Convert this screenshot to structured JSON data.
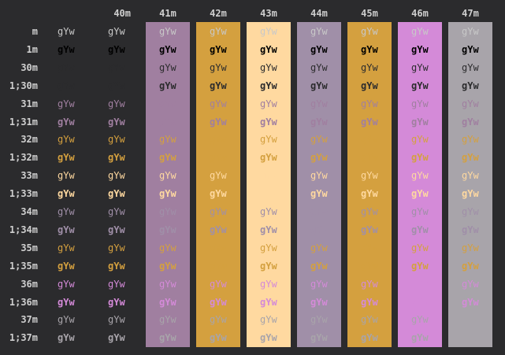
{
  "window": {
    "background": "#2b2b2d"
  },
  "sample_text": "gYw",
  "columns": [
    {
      "label": "",
      "bg": null
    },
    {
      "label": "40m",
      "bg": null
    },
    {
      "label": "41m",
      "bg": "#a07fa0"
    },
    {
      "label": "42m",
      "bg": "#d4a03f"
    },
    {
      "label": "43m",
      "bg": "#ffd9a0"
    },
    {
      "label": "44m",
      "bg": "#a08fa8"
    },
    {
      "label": "45m",
      "bg": "#d4a03f"
    },
    {
      "label": "46m",
      "bg": "#d48ad8"
    },
    {
      "label": "47m",
      "bg": "#a8a4aa"
    }
  ],
  "rows": [
    {
      "label": "m",
      "fg": "#c8c8c8",
      "bold": false
    },
    {
      "label": "1m",
      "fg": "#000000",
      "bold": true
    },
    {
      "label": "30m",
      "fg": "#2b2b2d",
      "bold": false
    },
    {
      "label": "1;30m",
      "fg": "#2b2b2d",
      "bold": true
    },
    {
      "label": "31m",
      "fg": "#a07fa0",
      "bold": false
    },
    {
      "label": "1;31m",
      "fg": "#a07fa0",
      "bold": true
    },
    {
      "label": "32m",
      "fg": "#d4a03f",
      "bold": false
    },
    {
      "label": "1;32m",
      "fg": "#d4a03f",
      "bold": true
    },
    {
      "label": "33m",
      "fg": "#ffd9a0",
      "bold": false
    },
    {
      "label": "1;33m",
      "fg": "#ffd9a0",
      "bold": true
    },
    {
      "label": "34m",
      "fg": "#a08fa8",
      "bold": false
    },
    {
      "label": "1;34m",
      "fg": "#a08fa8",
      "bold": true
    },
    {
      "label": "35m",
      "fg": "#d4a03f",
      "bold": false
    },
    {
      "label": "1;35m",
      "fg": "#d4a03f",
      "bold": true
    },
    {
      "label": "36m",
      "fg": "#d48ad8",
      "bold": false
    },
    {
      "label": "1;36m",
      "fg": "#d48ad8",
      "bold": true
    },
    {
      "label": "37m",
      "fg": "#a8a4aa",
      "bold": false
    },
    {
      "label": "1;37m",
      "fg": "#a8a4aa",
      "bold": true
    }
  ]
}
